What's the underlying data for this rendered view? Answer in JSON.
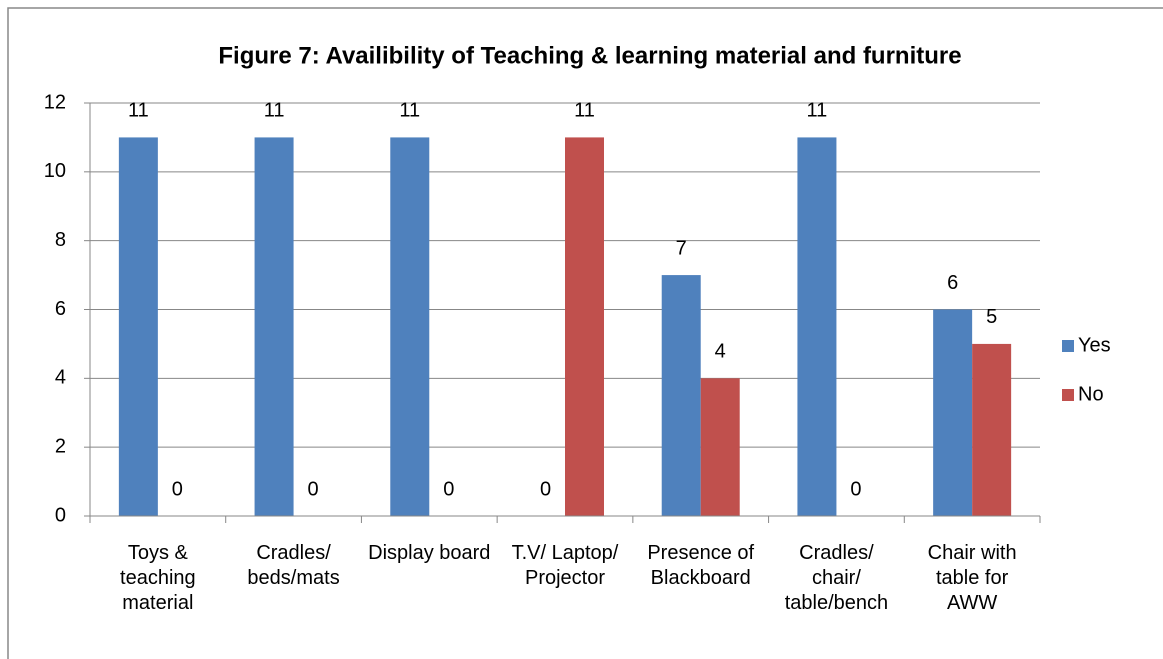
{
  "chart_data": {
    "type": "bar",
    "title": "Figure 7: Availibility of Teaching & learning material and furniture",
    "categories": [
      "Toys & teaching material",
      "Cradles/ beds/mats",
      "Display board",
      "T.V/ Laptop/ Projector",
      "Presence of Blackboard",
      "Cradles/ chair/ table/bench",
      "Chair with table for AWW"
    ],
    "series": [
      {
        "name": "Yes",
        "color": "#4f81bd",
        "values": [
          11,
          11,
          11,
          0,
          7,
          11,
          6
        ]
      },
      {
        "name": "No",
        "color": "#c0504d",
        "values": [
          0,
          0,
          0,
          11,
          4,
          0,
          5
        ]
      }
    ],
    "ylim": [
      0,
      12
    ],
    "yticks": [
      0,
      2,
      4,
      6,
      8,
      10,
      12
    ],
    "grid": true,
    "legend": "right"
  }
}
